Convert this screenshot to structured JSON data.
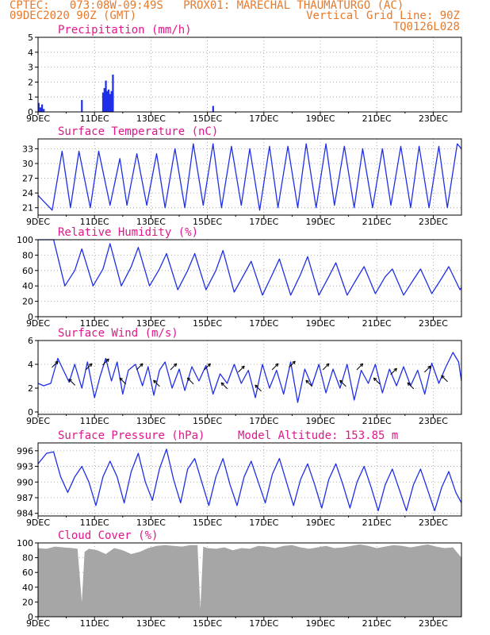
{
  "header": {
    "line1_left": "CPTEC:   073:08W-09:49S   PROX01: MARECHAL THAUMATURGO (AC)",
    "line2_left": "09DEC2020 90Z (GMT)",
    "line2_right": "Vertical Grid Line: 90Z",
    "line3_right": "TQ0126L028"
  },
  "colors": {
    "header": "#e8792a",
    "title": "#e0178a",
    "series": "#1f2ee8",
    "cloud": "#a6a6a6",
    "grid": "#9a9a9a"
  },
  "x_ticks": [
    "9DEC",
    "11DEC",
    "13DEC",
    "15DEC",
    "17DEC",
    "19DEC",
    "21DEC",
    "23DEC"
  ],
  "x_tick_days": [
    0,
    2,
    4,
    6,
    8,
    10,
    12,
    14
  ],
  "chart_data": [
    {
      "type": "bar",
      "title": "Precipitation (mm/h)",
      "ylim": [
        0,
        5
      ],
      "yticks": [
        "0",
        "1",
        "2",
        "3",
        "4",
        "5"
      ],
      "x_unit": "days since 9DEC",
      "x": [
        0.02,
        0.08,
        0.14,
        0.2,
        1.55,
        2.3,
        2.35,
        2.4,
        2.45,
        2.5,
        2.55,
        2.6,
        2.65,
        6.2
      ],
      "values": [
        0.6,
        0.3,
        0.5,
        0.2,
        0.8,
        1.3,
        1.6,
        2.1,
        1.4,
        1.5,
        1.2,
        1.4,
        2.5,
        0.4
      ]
    },
    {
      "type": "line",
      "title": "Surface Temperature (nC)",
      "ylim": [
        19.5,
        35
      ],
      "yticks": [
        "21",
        "24",
        "27",
        "30",
        "33"
      ],
      "x_unit": "days since 9DEC",
      "x": [
        0.0,
        0.5,
        0.85,
        1.15,
        1.45,
        1.85,
        2.15,
        2.55,
        2.9,
        3.15,
        3.5,
        3.85,
        4.2,
        4.5,
        4.85,
        5.2,
        5.5,
        5.85,
        6.2,
        6.5,
        6.85,
        7.2,
        7.5,
        7.85,
        8.2,
        8.5,
        8.85,
        9.2,
        9.5,
        9.85,
        10.2,
        10.5,
        10.85,
        11.2,
        11.5,
        11.85,
        12.2,
        12.5,
        12.85,
        13.2,
        13.5,
        13.85,
        14.2,
        14.5,
        14.85,
        15.0
      ],
      "values": [
        23.5,
        20.5,
        32.5,
        21.0,
        32.5,
        21.0,
        32.5,
        21.5,
        31.0,
        21.5,
        32.0,
        21.5,
        32.0,
        21.0,
        33.0,
        21.0,
        34.0,
        21.5,
        34.0,
        21.0,
        33.5,
        21.5,
        33.0,
        20.5,
        33.5,
        21.0,
        33.5,
        21.0,
        34.0,
        21.0,
        34.0,
        21.5,
        33.5,
        21.0,
        33.0,
        21.0,
        33.0,
        21.5,
        33.5,
        21.0,
        33.5,
        21.0,
        33.5,
        21.0,
        34.0,
        33.0
      ]
    },
    {
      "type": "line",
      "title": "Relative Humidity (%)",
      "ylim": [
        0,
        100
      ],
      "yticks": [
        "0",
        "20",
        "40",
        "60",
        "80",
        "100"
      ],
      "x_unit": "days since 9DEC",
      "x": [
        0.0,
        0.55,
        0.95,
        1.3,
        1.55,
        1.95,
        2.3,
        2.55,
        2.95,
        3.3,
        3.55,
        3.95,
        4.3,
        4.55,
        4.95,
        5.3,
        5.55,
        5.95,
        6.3,
        6.55,
        6.95,
        7.3,
        7.55,
        7.95,
        8.3,
        8.55,
        8.95,
        9.3,
        9.55,
        9.95,
        10.3,
        10.55,
        10.95,
        11.3,
        11.55,
        11.95,
        12.3,
        12.55,
        12.95,
        13.3,
        13.55,
        13.95,
        14.3,
        14.55,
        14.95,
        15.0
      ],
      "values": [
        100,
        100,
        40,
        60,
        88,
        40,
        62,
        95,
        40,
        65,
        90,
        40,
        62,
        82,
        35,
        60,
        82,
        35,
        60,
        86,
        32,
        55,
        72,
        28,
        55,
        75,
        28,
        55,
        78,
        28,
        52,
        70,
        28,
        50,
        65,
        30,
        52,
        62,
        28,
        48,
        62,
        30,
        50,
        65,
        35,
        38
      ]
    },
    {
      "type": "line",
      "title": "Surface Wind (m/s)",
      "ylim": [
        -0.2,
        6
      ],
      "yticks": [
        "0",
        "2",
        "4",
        "6"
      ],
      "x_unit": "days since 9DEC",
      "x": [
        0.0,
        0.2,
        0.45,
        0.7,
        0.9,
        1.1,
        1.3,
        1.55,
        1.75,
        2.0,
        2.2,
        2.4,
        2.6,
        2.8,
        3.0,
        3.2,
        3.45,
        3.7,
        3.9,
        4.1,
        4.3,
        4.5,
        4.75,
        5.0,
        5.2,
        5.45,
        5.7,
        5.95,
        6.2,
        6.45,
        6.7,
        6.95,
        7.2,
        7.45,
        7.7,
        7.95,
        8.2,
        8.45,
        8.7,
        8.95,
        9.2,
        9.45,
        9.7,
        9.95,
        10.2,
        10.45,
        10.7,
        10.95,
        11.2,
        11.45,
        11.7,
        11.95,
        12.2,
        12.45,
        12.7,
        12.95,
        13.2,
        13.45,
        13.7,
        13.95,
        14.2,
        14.45,
        14.7,
        14.9,
        15.0
      ],
      "values": [
        2.4,
        2.2,
        2.4,
        4.5,
        3.5,
        2.5,
        4.0,
        2.0,
        4.2,
        1.2,
        3.0,
        4.5,
        2.6,
        4.2,
        1.5,
        3.5,
        4.0,
        2.2,
        3.8,
        1.4,
        3.5,
        4.2,
        2.0,
        3.6,
        1.8,
        3.8,
        2.6,
        3.9,
        1.5,
        3.2,
        2.4,
        4.0,
        2.4,
        3.5,
        1.2,
        4.0,
        2.0,
        3.5,
        1.5,
        4.2,
        0.8,
        3.6,
        2.2,
        4.0,
        1.6,
        3.6,
        2.0,
        4.0,
        1.0,
        3.5,
        2.4,
        4.0,
        1.6,
        3.6,
        2.2,
        3.8,
        2.2,
        3.5,
        1.5,
        4.1,
        2.4,
        3.8,
        5.0,
        4.2,
        2.6
      ],
      "arrows": {
        "x": [
          0.6,
          1.2,
          1.8,
          2.4,
          3.0,
          3.6,
          4.2,
          4.8,
          5.4,
          6.0,
          6.6,
          7.2,
          7.8,
          8.4,
          9.0,
          9.6,
          10.2,
          10.8,
          11.4,
          12.0,
          12.6,
          13.2,
          13.8,
          14.4
        ],
        "direction_deg": [
          45,
          315,
          45,
          45,
          315,
          45,
          315,
          45,
          315,
          45,
          315,
          45,
          315,
          45,
          45,
          315,
          45,
          315,
          45,
          315,
          45,
          315,
          45,
          315
        ],
        "speed": [
          4.0,
          2.5,
          3.8,
          4.2,
          2.6,
          3.8,
          2.4,
          3.8,
          2.6,
          3.8,
          2.2,
          3.6,
          2.0,
          3.8,
          4.0,
          2.4,
          3.8,
          2.4,
          3.8,
          2.6,
          3.4,
          2.2,
          3.6,
          2.8
        ]
      }
    },
    {
      "type": "line",
      "title": "Surface Pressure (hPa)",
      "annotation": "Model Altitude: 153.85 m",
      "ylim": [
        983.5,
        997.5
      ],
      "yticks": [
        "984",
        "987",
        "990",
        "993",
        "996"
      ],
      "x_unit": "days since 9DEC",
      "x": [
        0.0,
        0.3,
        0.55,
        0.8,
        1.05,
        1.3,
        1.55,
        1.8,
        2.05,
        2.3,
        2.55,
        2.8,
        3.05,
        3.3,
        3.55,
        3.8,
        4.05,
        4.3,
        4.55,
        4.8,
        5.05,
        5.3,
        5.55,
        5.8,
        6.05,
        6.3,
        6.55,
        6.8,
        7.05,
        7.3,
        7.55,
        7.8,
        8.05,
        8.3,
        8.55,
        8.8,
        9.05,
        9.3,
        9.55,
        9.8,
        10.05,
        10.3,
        10.55,
        10.8,
        11.05,
        11.3,
        11.55,
        11.8,
        12.05,
        12.3,
        12.55,
        12.8,
        13.05,
        13.3,
        13.55,
        13.8,
        14.05,
        14.3,
        14.55,
        14.8,
        15.0
      ],
      "values": [
        993.5,
        995.5,
        995.8,
        991.0,
        988.0,
        991.0,
        993.0,
        990.0,
        985.5,
        991.0,
        994.0,
        991.0,
        986.0,
        992.0,
        995.5,
        990.0,
        986.5,
        992.5,
        996.3,
        990.5,
        986.0,
        992.5,
        994.5,
        990.0,
        985.5,
        991.0,
        994.5,
        989.5,
        985.5,
        991.0,
        994.0,
        990.0,
        986.0,
        991.5,
        994.5,
        990.0,
        985.5,
        990.5,
        993.5,
        989.5,
        985.0,
        990.5,
        993.5,
        989.5,
        985.0,
        990.0,
        993.0,
        989.0,
        984.5,
        989.5,
        992.5,
        988.5,
        984.5,
        989.5,
        992.5,
        988.5,
        984.5,
        989.0,
        992.0,
        988.0,
        986.0
      ]
    },
    {
      "type": "area",
      "title": "Cloud Cover (%)",
      "ylim": [
        0,
        100
      ],
      "yticks": [
        "0",
        "20",
        "40",
        "60",
        "80",
        "100"
      ],
      "x_unit": "days since 9DEC",
      "x": [
        0.0,
        0.3,
        0.6,
        0.9,
        1.2,
        1.4,
        1.55,
        1.65,
        1.8,
        2.1,
        2.4,
        2.7,
        3.0,
        3.3,
        3.6,
        3.9,
        4.2,
        4.5,
        4.8,
        5.1,
        5.4,
        5.65,
        5.75,
        5.85,
        6.0,
        6.3,
        6.6,
        6.9,
        7.2,
        7.5,
        7.8,
        8.1,
        8.4,
        8.7,
        9.0,
        9.3,
        9.6,
        9.9,
        10.2,
        10.5,
        10.8,
        11.1,
        11.4,
        11.7,
        12.0,
        12.3,
        12.6,
        12.9,
        13.2,
        13.5,
        13.8,
        14.1,
        14.4,
        14.7,
        15.0
      ],
      "values": [
        93,
        92,
        95,
        94,
        93,
        92,
        20,
        88,
        92,
        90,
        85,
        93,
        90,
        85,
        88,
        93,
        96,
        97,
        96,
        95,
        97,
        97,
        10,
        95,
        93,
        92,
        94,
        90,
        93,
        92,
        96,
        95,
        93,
        96,
        97,
        94,
        92,
        94,
        96,
        93,
        94,
        96,
        98,
        96,
        93,
        95,
        97,
        96,
        94,
        96,
        98,
        95,
        93,
        94,
        80
      ]
    }
  ]
}
